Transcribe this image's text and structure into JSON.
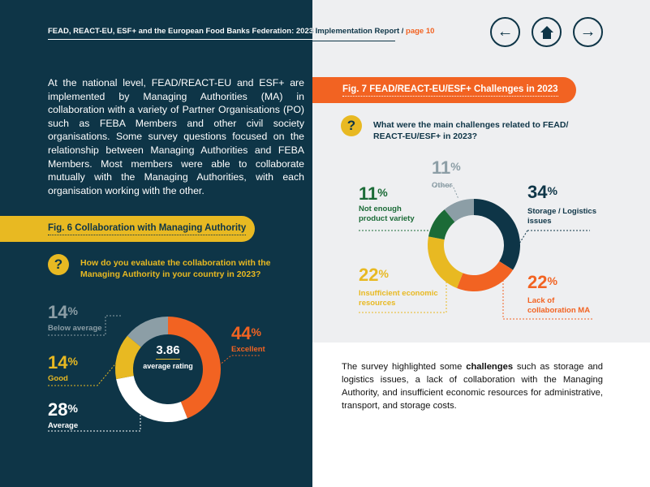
{
  "header": {
    "title": "FEAD, REACT-EU, ESF+ and the European Food Banks Federation: 2023 Implementation Report /",
    "page": "page 10"
  },
  "nav": {
    "back": "←",
    "home": "⌂",
    "forward": "→"
  },
  "intro": "At the national level, FEAD/REACT-EU and ESF+ are implemented by Managing Authorities (MA) in collaboration with a variety of Partner Organisations (PO) such as FEBA Members and other civil society organisations. Some survey questions focused on the relationship between Managing Authorities and FEBA Members. Most members were able to collaborate mutually with the Managing Authorities, with each organisation working with the other.",
  "fig6": {
    "title": "Fig. 6 Collaboration with Managing Authority",
    "question": "How do you evaluate the collaboration with the Managing Authority in your country in 2023?",
    "center_value": "3.86",
    "center_label": "average rating"
  },
  "fig7": {
    "title": "Fig. 7 FEAD/REACT-EU/ESF+ Challenges in 2023",
    "question": "What were the main challenges related to FEAD/ REACT-EU/ESF+ in 2023?"
  },
  "survey": {
    "pre": "The survey highlighted some ",
    "bold": "challenges",
    "post": " such as storage and logistics issues, a lack of collaboration with the Managing Authority, and insufficient economic resources for administrative, transport, and storage costs."
  },
  "chart_data": [
    {
      "type": "pie",
      "donut": true,
      "categories": [
        "Excellent",
        "Average",
        "Good",
        "Below average"
      ],
      "values": [
        44,
        28,
        14,
        14
      ],
      "labels": [
        "44",
        "28",
        "14",
        "14"
      ],
      "colors": [
        "#f26322",
        "#ffffff",
        "#e8b922",
        "#8c9ea6"
      ]
    },
    {
      "type": "pie",
      "donut": true,
      "categories": [
        "Storage / Logistics issues",
        "Lack of collaboration MA",
        "Insufficient economic resources",
        "Not enough product variety",
        "Other"
      ],
      "values": [
        34,
        22,
        22,
        11,
        11
      ],
      "labels": [
        "34",
        "22",
        "22",
        "11",
        "11"
      ],
      "colors": [
        "#0e3547",
        "#f26322",
        "#e8b922",
        "#1b6b37",
        "#8c9ea6"
      ]
    }
  ]
}
